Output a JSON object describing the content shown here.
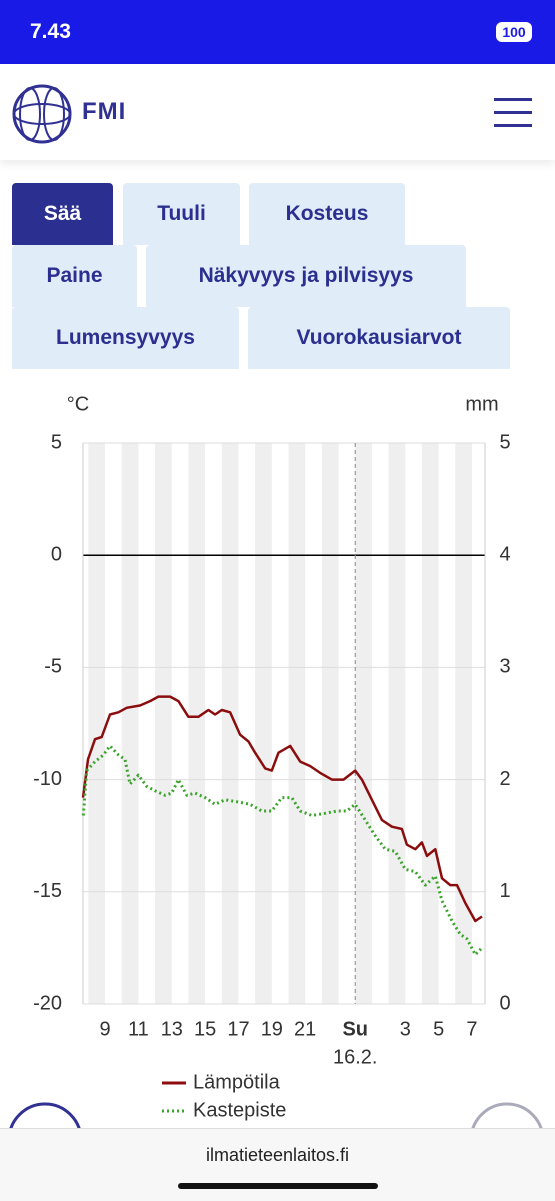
{
  "status": {
    "time": "7.43",
    "battery": "100"
  },
  "header": {
    "logo_text": "FMI"
  },
  "tabs": [
    {
      "label": "Sää",
      "active": true
    },
    {
      "label": "Tuuli",
      "active": false
    },
    {
      "label": "Kosteus",
      "active": false
    },
    {
      "label": "Paine",
      "active": false
    },
    {
      "label": "Näkyvyys ja pilvisyys",
      "active": false
    },
    {
      "label": "Lumensyvyys",
      "active": false
    },
    {
      "label": "Vuorokausiarvot",
      "active": false
    }
  ],
  "chart_data": {
    "type": "line",
    "y_unit": "°C",
    "y2_unit": "mm",
    "date_label": "16.2.",
    "xlim": [
      7.68,
      31.78
    ],
    "xticks": [
      9,
      11,
      13,
      15,
      17,
      19,
      21,
      {
        "value": 24,
        "label": "Su"
      },
      {
        "value": 27,
        "label": "3"
      },
      {
        "value": 29,
        "label": "5"
      },
      {
        "value": 31,
        "label": "7"
      }
    ],
    "ylim": [
      -20,
      5
    ],
    "yticks": [
      -20,
      -15,
      -10,
      -5,
      0,
      5
    ],
    "y2lim": [
      0,
      5
    ],
    "y2ticks": [
      0,
      1,
      2,
      3,
      4,
      5
    ],
    "series": [
      {
        "name": "Lämpötila",
        "color": "#8b0d0d",
        "style": "solid",
        "x": [
          7.68,
          7.98,
          8.4,
          8.8,
          9.3,
          9.8,
          10.3,
          11.1,
          11.7,
          12.2,
          12.9,
          13.4,
          14.0,
          14.6,
          15.2,
          15.6,
          16.0,
          16.5,
          17.1,
          17.6,
          18.0,
          18.6,
          19.0,
          19.4,
          20.1,
          20.7,
          21.3,
          21.9,
          22.6,
          23.3,
          24,
          24.4,
          25.0,
          25.6,
          26.2,
          26.8,
          27.1,
          27.6,
          28.0,
          28.3,
          28.8,
          29.2,
          29.7,
          30.1,
          30.6,
          30.9,
          31.2,
          31.6
        ],
        "values": [
          -10.8,
          -9.1,
          -8.2,
          -8.1,
          -7.1,
          -7.0,
          -6.8,
          -6.7,
          -6.5,
          -6.3,
          -6.3,
          -6.5,
          -7.2,
          -7.2,
          -6.9,
          -7.1,
          -6.9,
          -7.0,
          -8.0,
          -8.3,
          -8.8,
          -9.5,
          -9.6,
          -8.8,
          -8.5,
          -9.2,
          -9.4,
          -9.7,
          -10.0,
          -10.0,
          -9.6,
          -10.0,
          -10.9,
          -11.8,
          -12.1,
          -12.2,
          -12.9,
          -13.1,
          -12.8,
          -13.4,
          -13.1,
          -14.4,
          -14.7,
          -14.7,
          -15.5,
          -15.9,
          -16.3,
          -16.1
        ]
      },
      {
        "name": "Kastepiste",
        "color": "#3aa52a",
        "style": "dotted",
        "x": [
          7.7,
          7.9,
          8.4,
          8.9,
          9.3,
          9.8,
          10.2,
          10.5,
          11.0,
          11.5,
          12.0,
          12.6,
          13.0,
          13.4,
          13.9,
          14.4,
          15.0,
          15.6,
          16.2,
          17.0,
          17.7,
          18.4,
          19.0,
          19.6,
          20.2,
          20.7,
          21.4,
          22.2,
          22.9,
          23.5,
          24,
          24.6,
          25.2,
          25.8,
          26.4,
          27.0,
          27.6,
          28.2,
          28.8,
          29.2,
          29.8,
          30.3,
          30.7,
          31.2,
          31.6
        ],
        "values": [
          -11.6,
          -9.6,
          -9.2,
          -8.9,
          -8.5,
          -8.9,
          -9.1,
          -10.2,
          -9.8,
          -10.3,
          -10.5,
          -10.7,
          -10.6,
          -10.0,
          -10.7,
          -10.6,
          -10.8,
          -11.1,
          -10.9,
          -11.0,
          -11.1,
          -11.4,
          -11.4,
          -10.8,
          -10.8,
          -11.4,
          -11.6,
          -11.5,
          -11.4,
          -11.4,
          -11.1,
          -11.8,
          -12.5,
          -13.1,
          -13.2,
          -14.0,
          -14.1,
          -14.7,
          -14.3,
          -15.4,
          -16.3,
          -16.9,
          -17.1,
          -17.8,
          -17.5
        ]
      }
    ]
  },
  "footer": {
    "url": "ilmatieteenlaitos.fi"
  }
}
